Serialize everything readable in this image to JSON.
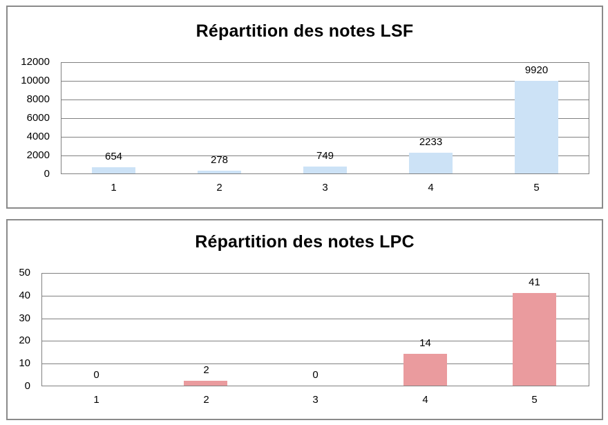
{
  "page": {
    "background_color": "#ffffff",
    "panel_border_color": "#8a8a8a"
  },
  "chart_data": [
    {
      "type": "bar",
      "title": "Répartition des notes LSF",
      "categories": [
        "1",
        "2",
        "3",
        "4",
        "5"
      ],
      "values": [
        654,
        278,
        749,
        2233,
        9920
      ],
      "xlabel": "",
      "ylabel": "",
      "ylim": [
        0,
        12000
      ],
      "yticks": [
        0,
        2000,
        4000,
        6000,
        8000,
        10000,
        12000
      ],
      "grid": "horizontal",
      "legend": false,
      "data_labels": true,
      "bar_color": "#cce2f6",
      "gridline_color": "#808080",
      "text_color": "#000000"
    },
    {
      "type": "bar",
      "title": "Répartition des notes LPC",
      "categories": [
        "1",
        "2",
        "3",
        "4",
        "5"
      ],
      "values": [
        0,
        2,
        0,
        14,
        41
      ],
      "xlabel": "",
      "ylabel": "",
      "ylim": [
        0,
        50
      ],
      "yticks": [
        0,
        10,
        20,
        30,
        40,
        50
      ],
      "grid": "horizontal",
      "legend": false,
      "data_labels": true,
      "bar_color": "#ea9b9e",
      "gridline_color": "#808080",
      "text_color": "#000000"
    }
  ]
}
